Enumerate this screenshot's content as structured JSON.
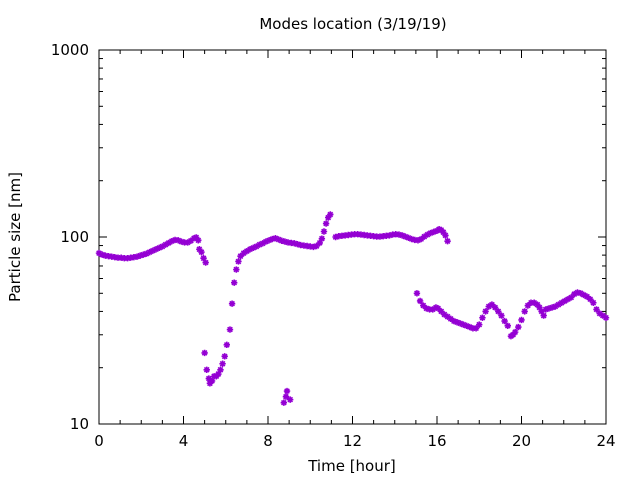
{
  "chart_data": {
    "type": "scatter",
    "title": "Modes location (3/19/19)",
    "xlabel": "Time [hour]",
    "ylabel": "Particle size [nm]",
    "xlim": [
      0,
      24
    ],
    "ylim": [
      10,
      1000
    ],
    "yscale": "log",
    "grid": false,
    "legend": "none",
    "marker": "asterisk",
    "color": "#9400d3",
    "xticks": [
      0,
      4,
      8,
      12,
      16,
      20,
      24
    ],
    "xtick_labels": [
      "0",
      "4",
      "8",
      "12",
      "16",
      "20",
      "24"
    ],
    "yticks": [
      10,
      100,
      1000
    ],
    "ytick_labels": [
      "10",
      "100",
      "1000"
    ],
    "series": [
      {
        "points": [
          [
            0.0,
            82
          ],
          [
            0.15,
            80.5
          ],
          [
            0.3,
            79.5
          ],
          [
            0.45,
            79
          ],
          [
            0.6,
            78.5
          ],
          [
            0.75,
            78
          ],
          [
            0.9,
            77.5
          ],
          [
            1.05,
            77.5
          ],
          [
            1.2,
            77
          ],
          [
            1.35,
            77
          ],
          [
            1.5,
            77.5
          ],
          [
            1.65,
            78
          ],
          [
            1.8,
            78.5
          ],
          [
            1.95,
            79.5
          ],
          [
            2.1,
            80.5
          ],
          [
            2.25,
            81.5
          ],
          [
            2.4,
            83
          ],
          [
            2.55,
            84.5
          ],
          [
            2.7,
            86
          ],
          [
            2.85,
            87.5
          ],
          [
            3.0,
            89
          ],
          [
            3.15,
            91
          ],
          [
            3.3,
            93
          ],
          [
            3.45,
            95
          ],
          [
            3.6,
            96.5
          ],
          [
            3.75,
            96
          ],
          [
            3.9,
            94.5
          ],
          [
            4.05,
            93.5
          ],
          [
            4.2,
            93.5
          ],
          [
            4.35,
            95.5
          ],
          [
            4.5,
            98.5
          ],
          [
            4.6,
            99.5
          ],
          [
            4.7,
            96
          ],
          [
            4.75,
            86
          ],
          [
            4.85,
            83
          ],
          [
            4.95,
            77
          ],
          [
            5.05,
            73
          ],
          [
            5.0,
            24
          ],
          [
            5.1,
            19.5
          ],
          [
            5.2,
            17.5
          ],
          [
            5.25,
            16.5
          ],
          [
            5.35,
            17
          ],
          [
            5.45,
            18
          ],
          [
            5.55,
            18
          ],
          [
            5.65,
            18.5
          ],
          [
            5.75,
            19.5
          ],
          [
            5.85,
            21
          ],
          [
            5.95,
            23
          ],
          [
            6.05,
            26.5
          ],
          [
            6.2,
            32
          ],
          [
            6.3,
            44
          ],
          [
            6.4,
            57
          ],
          [
            6.5,
            67
          ],
          [
            6.6,
            74
          ],
          [
            6.7,
            79
          ],
          [
            6.85,
            82
          ],
          [
            7.0,
            84
          ],
          [
            7.15,
            86
          ],
          [
            7.3,
            87.5
          ],
          [
            7.45,
            89
          ],
          [
            7.6,
            91
          ],
          [
            7.75,
            92.5
          ],
          [
            7.9,
            94.5
          ],
          [
            8.05,
            96
          ],
          [
            8.2,
            97.5
          ],
          [
            8.35,
            98.5
          ],
          [
            8.5,
            97
          ],
          [
            8.65,
            95.5
          ],
          [
            8.8,
            94.5
          ],
          [
            8.95,
            93.5
          ],
          [
            9.1,
            93
          ],
          [
            9.25,
            92.5
          ],
          [
            9.4,
            91.5
          ],
          [
            9.55,
            90.5
          ],
          [
            9.7,
            90
          ],
          [
            9.85,
            89.5
          ],
          [
            10.0,
            89
          ],
          [
            10.15,
            88.5
          ],
          [
            10.3,
            89.5
          ],
          [
            10.45,
            93
          ],
          [
            10.55,
            98
          ],
          [
            10.65,
            107
          ],
          [
            10.75,
            118
          ],
          [
            10.85,
            127
          ],
          [
            10.95,
            132
          ],
          [
            8.75,
            13
          ],
          [
            8.85,
            14
          ],
          [
            8.9,
            15
          ],
          [
            9.05,
            13.5
          ],
          [
            11.2,
            100
          ],
          [
            11.35,
            101
          ],
          [
            11.5,
            101.5
          ],
          [
            11.65,
            102
          ],
          [
            11.8,
            102.5
          ],
          [
            11.95,
            103
          ],
          [
            12.1,
            103.5
          ],
          [
            12.25,
            103.5
          ],
          [
            12.4,
            103
          ],
          [
            12.55,
            102.5
          ],
          [
            12.7,
            102
          ],
          [
            12.85,
            101.5
          ],
          [
            13.0,
            101
          ],
          [
            13.15,
            100.5
          ],
          [
            13.3,
            100.5
          ],
          [
            13.45,
            101
          ],
          [
            13.6,
            101.5
          ],
          [
            13.75,
            102
          ],
          [
            13.9,
            103
          ],
          [
            14.05,
            103.5
          ],
          [
            14.2,
            103
          ],
          [
            14.35,
            102
          ],
          [
            14.5,
            100.5
          ],
          [
            14.65,
            99
          ],
          [
            14.8,
            97.5
          ],
          [
            14.95,
            96.5
          ],
          [
            15.1,
            96
          ],
          [
            15.25,
            97.5
          ],
          [
            15.4,
            100.5
          ],
          [
            15.55,
            103
          ],
          [
            15.7,
            105
          ],
          [
            15.85,
            106.5
          ],
          [
            16.0,
            108
          ],
          [
            16.1,
            110
          ],
          [
            16.2,
            109
          ],
          [
            16.3,
            106
          ],
          [
            16.4,
            102
          ],
          [
            16.5,
            95
          ],
          [
            15.05,
            50
          ],
          [
            15.2,
            45.5
          ],
          [
            15.35,
            43
          ],
          [
            15.5,
            41.5
          ],
          [
            15.65,
            41
          ],
          [
            15.8,
            41
          ],
          [
            15.95,
            42
          ],
          [
            16.05,
            41.5
          ],
          [
            16.2,
            40
          ],
          [
            16.35,
            38.5
          ],
          [
            16.5,
            37.5
          ],
          [
            16.65,
            36.5
          ],
          [
            16.8,
            35.5
          ],
          [
            16.95,
            35
          ],
          [
            17.1,
            34.5
          ],
          [
            17.25,
            34
          ],
          [
            17.4,
            33.5
          ],
          [
            17.55,
            33
          ],
          [
            17.7,
            32.5
          ],
          [
            17.85,
            32.5
          ],
          [
            18.0,
            34
          ],
          [
            18.15,
            37
          ],
          [
            18.3,
            40
          ],
          [
            18.45,
            42.5
          ],
          [
            18.6,
            43.5
          ],
          [
            18.75,
            42
          ],
          [
            18.9,
            40
          ],
          [
            19.05,
            38
          ],
          [
            19.2,
            35.5
          ],
          [
            19.35,
            33.5
          ],
          [
            19.5,
            29.5
          ],
          [
            19.6,
            30
          ],
          [
            19.7,
            31
          ],
          [
            19.85,
            33
          ],
          [
            20.0,
            36
          ],
          [
            20.15,
            40
          ],
          [
            20.3,
            43
          ],
          [
            20.45,
            44.5
          ],
          [
            20.6,
            44.5
          ],
          [
            20.75,
            43.5
          ],
          [
            20.85,
            42
          ],
          [
            20.95,
            40
          ],
          [
            21.05,
            38
          ],
          [
            21.15,
            41
          ],
          [
            21.3,
            41.5
          ],
          [
            21.45,
            42
          ],
          [
            21.6,
            42.5
          ],
          [
            21.75,
            43.5
          ],
          [
            21.9,
            44.5
          ],
          [
            22.05,
            45.5
          ],
          [
            22.2,
            46.5
          ],
          [
            22.35,
            47.5
          ],
          [
            22.5,
            49.5
          ],
          [
            22.65,
            50.5
          ],
          [
            22.8,
            50
          ],
          [
            22.95,
            49
          ],
          [
            23.1,
            48
          ],
          [
            23.25,
            46.5
          ],
          [
            23.4,
            44.5
          ],
          [
            23.55,
            41
          ],
          [
            23.7,
            39
          ],
          [
            23.85,
            38
          ],
          [
            24.0,
            37
          ]
        ]
      }
    ]
  }
}
